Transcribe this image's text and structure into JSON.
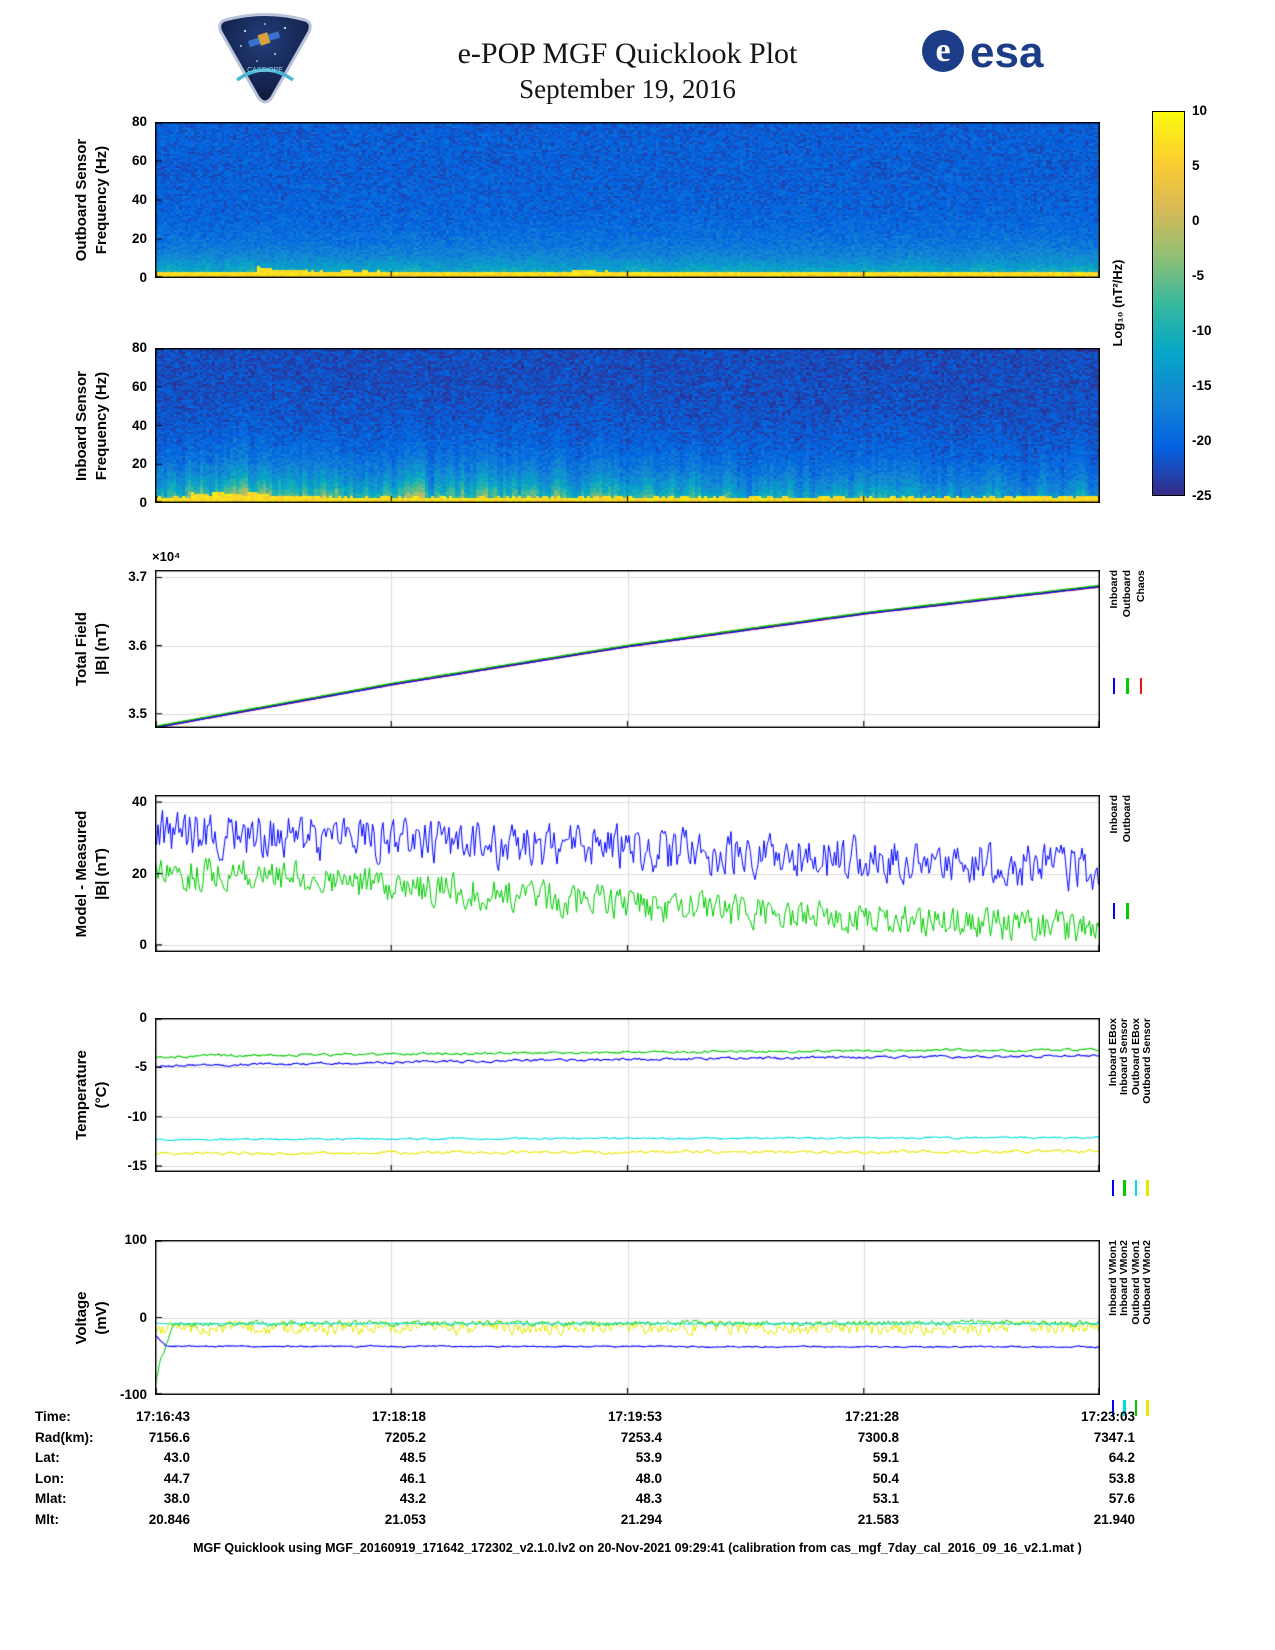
{
  "header": {
    "title": "e-POP MGF Quicklook Plot",
    "date": "September 19, 2016",
    "mission_logo_name": "CASSIOPE",
    "esa_symbol": "e",
    "esa_logo_text": "esa"
  },
  "colorbar": {
    "label": "Log₁₀ (nT²/Hz)",
    "ticks": [
      "10",
      "5",
      "0",
      "-5",
      "-10",
      "-15",
      "-20",
      "-25"
    ],
    "vmin": -25,
    "vmax": 10
  },
  "chart_data": [
    {
      "type": "heatmap",
      "name": "outboard-spectrogram",
      "ylabel_lines": [
        "Outboard Sensor",
        "Frequency (Hz)"
      ],
      "ylim": [
        0,
        80
      ],
      "yticks": [
        0,
        20,
        40,
        60,
        80
      ],
      "x_range": [
        "17:16:43",
        "17:23:03"
      ],
      "value_units": "Log10 (nT^2/Hz)",
      "model": {
        "background": -21,
        "lowfreq_boost": 13,
        "falloff_hz": 11,
        "noise": 2.8,
        "stripe_min": 0.75,
        "stripe_max": 1.3,
        "stripe_smooth": 0.75,
        "left_bias": 0,
        "band_hz": 2.6,
        "band_value": 7,
        "band_noise": 2
      }
    },
    {
      "type": "heatmap",
      "name": "inboard-spectrogram",
      "ylabel_lines": [
        "Inboard Sensor",
        "Frequency (Hz)"
      ],
      "ylim": [
        0,
        80
      ],
      "yticks": [
        0,
        20,
        40,
        60,
        80
      ],
      "x_range": [
        "17:16:43",
        "17:23:03"
      ],
      "value_units": "Log10 (nT^2/Hz)",
      "model": {
        "background": -22.5,
        "lowfreq_boost": 16,
        "falloff_hz": 14,
        "noise": 2.8,
        "stripe_min": 0.3,
        "stripe_max": 1.8,
        "stripe_smooth": 0.55,
        "left_bias": 0.35,
        "band_hz": 2.6,
        "band_value": 7,
        "band_noise": 2
      }
    },
    {
      "type": "line",
      "name": "total-field",
      "ylabel_lines": [
        "Total Field",
        "|B| (nT)"
      ],
      "scale_label": "×10⁴",
      "ylim": [
        34790,
        37110
      ],
      "yticks": [
        35000,
        36000,
        37000
      ],
      "ytick_labels": [
        "3.5",
        "3.6",
        "3.7"
      ],
      "x_range": [
        "17:16:43",
        "17:23:03"
      ],
      "series": [
        {
          "name": "Chaos",
          "color": "#ee1111",
          "width": 2.4,
          "trend_t": [
            0,
            0.25,
            0.5,
            0.75,
            1
          ],
          "trend_v": [
            34800,
            35430,
            35990,
            36470,
            36870
          ],
          "noise": 2,
          "smooth": 0.8,
          "step": 2
        },
        {
          "name": "Outboard",
          "color": "#00cc00",
          "width": 1.4,
          "offset": 14,
          "trend_t": [
            0,
            0.25,
            0.5,
            0.75,
            1
          ],
          "trend_v": [
            34800,
            35430,
            35990,
            36470,
            36870
          ],
          "noise": 3,
          "smooth": 0.8,
          "step": 2
        },
        {
          "name": "Inboard",
          "color": "#0000ff",
          "width": 1.2,
          "offset": -6,
          "trend_t": [
            0,
            0.25,
            0.5,
            0.75,
            1
          ],
          "trend_v": [
            34800,
            35430,
            35990,
            36470,
            36870
          ],
          "noise": 3,
          "smooth": 0.8,
          "step": 2
        }
      ],
      "legend": [
        {
          "label": "Inboard",
          "color": "#0000ff"
        },
        {
          "label": "Outboard",
          "color": "#00cc00"
        },
        {
          "label": "Chaos",
          "color": "#ee1111"
        }
      ]
    },
    {
      "type": "line",
      "name": "model-minus-measured",
      "ylabel_lines": [
        "Model - Measured",
        "|B| (nT)"
      ],
      "ylim": [
        -2,
        42
      ],
      "yticks": [
        0,
        20,
        40
      ],
      "x_range": [
        "17:16:43",
        "17:23:03"
      ],
      "series": [
        {
          "name": "Inboard",
          "color": "#0000ff",
          "width": 1,
          "trend_t": [
            0,
            0.1,
            0.2,
            0.3,
            0.4,
            0.5,
            0.6,
            0.7,
            0.8,
            0.9,
            1
          ],
          "trend_v": [
            31.5,
            30.5,
            29.5,
            28.5,
            27.5,
            27,
            25.5,
            24.5,
            23.5,
            22,
            21
          ],
          "noise": 5,
          "smooth": 0.3,
          "step": 1.5
        },
        {
          "name": "Outboard",
          "color": "#00cc00",
          "width": 1,
          "trend_t": [
            0,
            0.1,
            0.2,
            0.3,
            0.4,
            0.5,
            0.6,
            0.7,
            0.8,
            0.9,
            1
          ],
          "trend_v": [
            20.5,
            19,
            17.5,
            15.5,
            13.5,
            11.5,
            9.5,
            8,
            6.5,
            5.5,
            4.5
          ],
          "noise": 3.8,
          "smooth": 0.3,
          "step": 1.5
        }
      ],
      "legend": [
        {
          "label": "Inboard",
          "color": "#0000ff"
        },
        {
          "label": "Outboard",
          "color": "#00cc00"
        }
      ]
    },
    {
      "type": "line",
      "name": "temperature",
      "ylabel_lines": [
        "Temperature",
        "(°C)"
      ],
      "ylim": [
        -15.6,
        0
      ],
      "yticks": [
        0,
        -5,
        -10,
        -15
      ],
      "x_range": [
        "17:16:43",
        "17:23:03"
      ],
      "series": [
        {
          "name": "Inboard EBox",
          "color": "#0000ff",
          "width": 1.1,
          "trend_t": [
            0,
            0.3,
            0.6,
            1
          ],
          "trend_v": [
            -4.9,
            -4.4,
            -4.1,
            -3.8
          ],
          "noise": 0.15,
          "smooth": 0.55,
          "step": 2
        },
        {
          "name": "Inboard Sensor",
          "color": "#00cc00",
          "width": 1.1,
          "trend_t": [
            0,
            0.3,
            0.6,
            1
          ],
          "trend_v": [
            -3.9,
            -3.6,
            -3.4,
            -3.2
          ],
          "noise": 0.15,
          "smooth": 0.55,
          "step": 2
        },
        {
          "name": "Outboard EBox",
          "color": "#00e0e0",
          "width": 1.1,
          "trend_t": [
            0,
            1
          ],
          "trend_v": [
            -12.3,
            -12.1
          ],
          "noise": 0.1,
          "smooth": 0.55,
          "step": 2
        },
        {
          "name": "Outboard Sensor",
          "color": "#e8e800",
          "width": 1.1,
          "trend_t": [
            0,
            1
          ],
          "trend_v": [
            -13.7,
            -13.5
          ],
          "noise": 0.17,
          "smooth": 0.55,
          "step": 2
        }
      ],
      "legend": [
        {
          "label": "Inboard EBox",
          "color": "#0000ff"
        },
        {
          "label": "Inboard Sensor",
          "color": "#00cc00"
        },
        {
          "label": "Outboard EBox",
          "color": "#00e0e0"
        },
        {
          "label": "Outboard Sensor",
          "color": "#e8e800"
        }
      ]
    },
    {
      "type": "line",
      "name": "voltage",
      "ylabel_lines": [
        "Voltage",
        "(mV)"
      ],
      "ylim": [
        -100,
        100
      ],
      "yticks": [
        100,
        0,
        -100
      ],
      "x_range": [
        "17:16:43",
        "17:23:03"
      ],
      "series": [
        {
          "name": "Outboard VMon2",
          "color": "#e8e800",
          "width": 1,
          "trend_t": [
            0,
            1
          ],
          "trend_v": [
            -13,
            -13
          ],
          "noise": 8,
          "smooth": 0.35,
          "clamp_max": -5,
          "step": 1.5
        },
        {
          "name": "Outboard VMon1",
          "color": "#00cc00",
          "width": 1,
          "trend_t": [
            0,
            0.005,
            0.02,
            1
          ],
          "trend_v": [
            -88,
            -60,
            -8,
            -7
          ],
          "noise": 3.2,
          "smooth": 0.4,
          "clamp_max": -2,
          "step": 1.5
        },
        {
          "name": "Inboard VMon2",
          "color": "#00e0e0",
          "width": 1,
          "trend_t": [
            0,
            1
          ],
          "trend_v": [
            -8,
            -8
          ],
          "noise": 0.8,
          "smooth": 0.6,
          "step": 1.5
        },
        {
          "name": "Inboard VMon1",
          "color": "#0000ff",
          "width": 1.1,
          "trend_t": [
            0,
            0.012,
            1
          ],
          "trend_v": [
            -22,
            -37,
            -38
          ],
          "noise": 1.3,
          "smooth": 0.7,
          "step": 1.5
        }
      ],
      "legend": [
        {
          "label": "Inboard VMon1",
          "color": "#0000ff"
        },
        {
          "label": "Inboard VMon2",
          "color": "#00e0e0"
        },
        {
          "label": "Outboard VMon1",
          "color": "#00cc00"
        },
        {
          "label": "Outboard VMon2",
          "color": "#e8e800"
        }
      ]
    }
  ],
  "footer_table": {
    "row_labels": [
      "Time:",
      "Rad(km):",
      "Lat:",
      "Lon:",
      "Mlat:",
      "Mlt:"
    ],
    "rows": [
      [
        "17:16:43",
        "17:18:18",
        "17:19:53",
        "17:21:28",
        "17:23:03"
      ],
      [
        "7156.6",
        "7205.2",
        "7253.4",
        "7300.8",
        "7347.1"
      ],
      [
        "43.0",
        "48.5",
        "53.9",
        "59.1",
        "64.2"
      ],
      [
        "44.7",
        "46.1",
        "48.0",
        "50.4",
        "53.8"
      ],
      [
        "38.0",
        "43.2",
        "48.3",
        "53.1",
        "57.6"
      ],
      [
        "20.846",
        "21.053",
        "21.294",
        "21.583",
        "21.940"
      ]
    ]
  },
  "footer_note": "MGF Quicklook using MGF_20160919_171642_172302_v2.1.0.lv2 on 20-Nov-2021 09:29:41 (calibration from cas_mgf_7day_cal_2016_09_16_v2.1.mat )"
}
